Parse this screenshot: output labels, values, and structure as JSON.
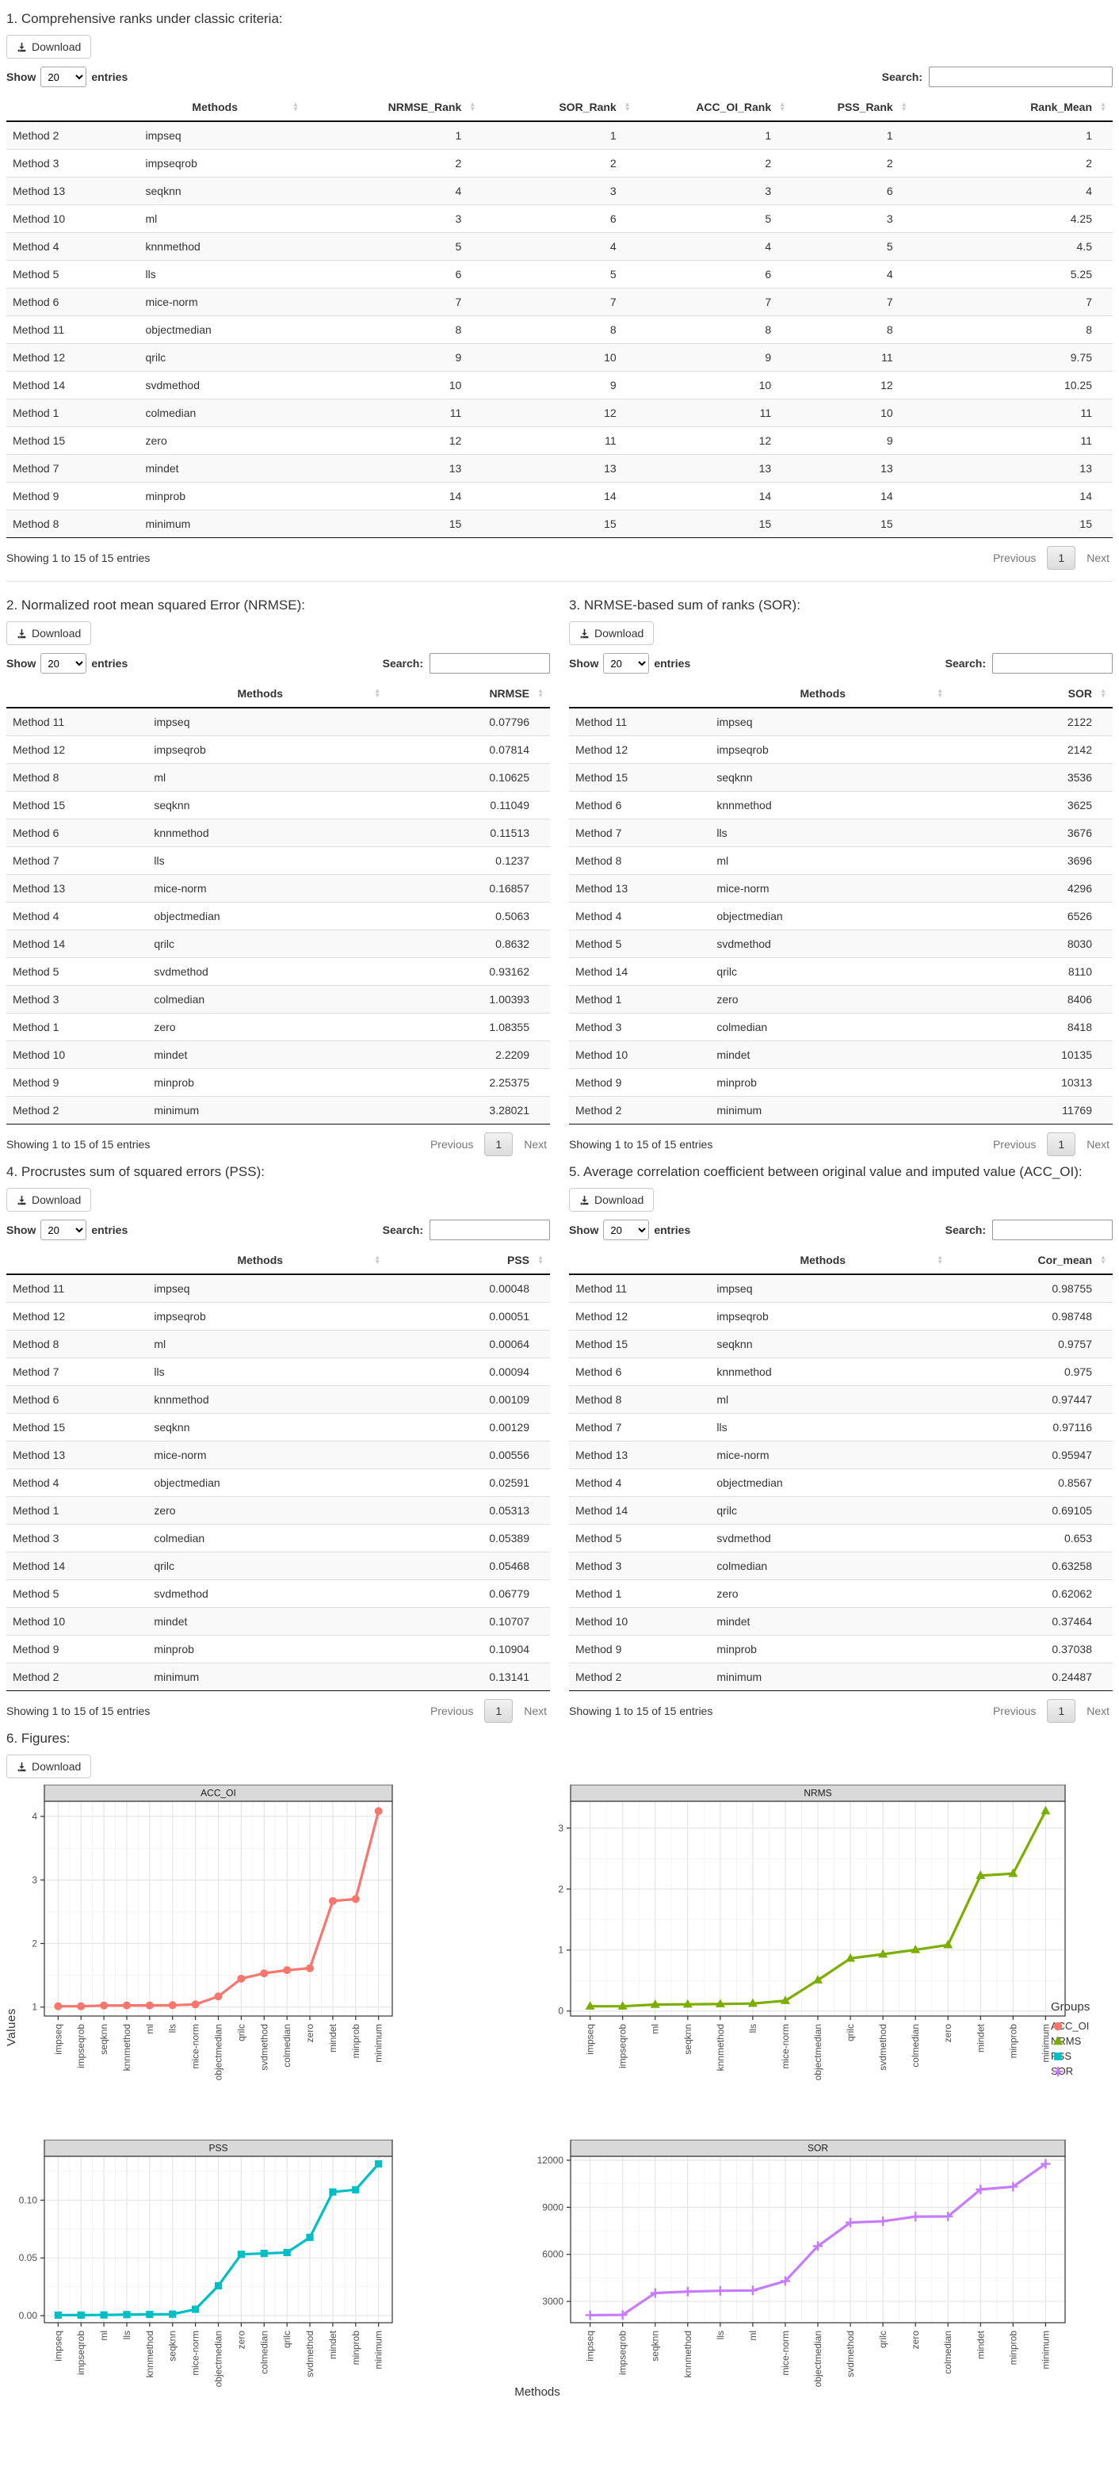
{
  "common": {
    "download_label": "Download",
    "show_label": "Show",
    "entries_label": "entries",
    "show_value": "20",
    "search_label": "Search:",
    "info_text": "Showing 1 to 15 of 15 entries",
    "prev_label": "Previous",
    "page_number": "1",
    "next_label": "Next"
  },
  "sections": {
    "s1": {
      "title": "1. Comprehensive ranks under classic criteria:"
    },
    "s2": {
      "title": "2. Normalized root mean squared Error (NRMSE):"
    },
    "s3": {
      "title": "3. NRMSE-based sum of ranks (SOR):"
    },
    "s4": {
      "title": "4. Procrustes sum of squared errors (PSS):"
    },
    "s5": {
      "title": "5. Average correlation coefficient between original value and imputed value (ACC_OI):"
    },
    "s6": {
      "title": "6. Figures:"
    }
  },
  "tables": {
    "t1": {
      "headers": [
        "",
        "Methods",
        "NRMSE_Rank",
        "SOR_Rank",
        "ACC_OI_Rank",
        "PSS_Rank",
        "Rank_Mean"
      ],
      "col_widths": [
        "12%",
        "15%",
        "16%",
        "14%",
        "14%",
        "11%",
        "18%"
      ],
      "rows": [
        [
          "Method 2",
          "impseq",
          "1",
          "1",
          "1",
          "1",
          "1"
        ],
        [
          "Method 3",
          "impseqrob",
          "2",
          "2",
          "2",
          "2",
          "2"
        ],
        [
          "Method 13",
          "seqknn",
          "4",
          "3",
          "3",
          "6",
          "4"
        ],
        [
          "Method 10",
          "ml",
          "3",
          "6",
          "5",
          "3",
          "4.25"
        ],
        [
          "Method 4",
          "knnmethod",
          "5",
          "4",
          "4",
          "5",
          "4.5"
        ],
        [
          "Method 5",
          "lls",
          "6",
          "5",
          "6",
          "4",
          "5.25"
        ],
        [
          "Method 6",
          "mice-norm",
          "7",
          "7",
          "7",
          "7",
          "7"
        ],
        [
          "Method 11",
          "objectmedian",
          "8",
          "8",
          "8",
          "8",
          "8"
        ],
        [
          "Method 12",
          "qrilc",
          "9",
          "10",
          "9",
          "11",
          "9.75"
        ],
        [
          "Method 14",
          "svdmethod",
          "10",
          "9",
          "10",
          "12",
          "10.25"
        ],
        [
          "Method 1",
          "colmedian",
          "11",
          "12",
          "11",
          "10",
          "11"
        ],
        [
          "Method 15",
          "zero",
          "12",
          "11",
          "12",
          "9",
          "11"
        ],
        [
          "Method 7",
          "mindet",
          "13",
          "13",
          "13",
          "13",
          "13"
        ],
        [
          "Method 9",
          "minprob",
          "14",
          "14",
          "14",
          "14",
          "14"
        ],
        [
          "Method 8",
          "minimum",
          "15",
          "15",
          "15",
          "15",
          "15"
        ]
      ]
    },
    "t2": {
      "headers": [
        "",
        "Methods",
        "NRMSE"
      ],
      "col_widths": [
        "26%",
        "44%",
        "30%"
      ],
      "rows": [
        [
          "Method 11",
          "impseq",
          "0.07796"
        ],
        [
          "Method 12",
          "impseqrob",
          "0.07814"
        ],
        [
          "Method 8",
          "ml",
          "0.10625"
        ],
        [
          "Method 15",
          "seqknn",
          "0.11049"
        ],
        [
          "Method 6",
          "knnmethod",
          "0.11513"
        ],
        [
          "Method 7",
          "lls",
          "0.1237"
        ],
        [
          "Method 13",
          "mice-norm",
          "0.16857"
        ],
        [
          "Method 4",
          "objectmedian",
          "0.5063"
        ],
        [
          "Method 14",
          "qrilc",
          "0.8632"
        ],
        [
          "Method 5",
          "svdmethod",
          "0.93162"
        ],
        [
          "Method 3",
          "colmedian",
          "1.00393"
        ],
        [
          "Method 1",
          "zero",
          "1.08355"
        ],
        [
          "Method 10",
          "mindet",
          "2.2209"
        ],
        [
          "Method 9",
          "minprob",
          "2.25375"
        ],
        [
          "Method 2",
          "minimum",
          "3.28021"
        ]
      ]
    },
    "t3": {
      "headers": [
        "",
        "Methods",
        "SOR"
      ],
      "col_widths": [
        "26%",
        "44%",
        "30%"
      ],
      "rows": [
        [
          "Method 11",
          "impseq",
          "2122"
        ],
        [
          "Method 12",
          "impseqrob",
          "2142"
        ],
        [
          "Method 15",
          "seqknn",
          "3536"
        ],
        [
          "Method 6",
          "knnmethod",
          "3625"
        ],
        [
          "Method 7",
          "lls",
          "3676"
        ],
        [
          "Method 8",
          "ml",
          "3696"
        ],
        [
          "Method 13",
          "mice-norm",
          "4296"
        ],
        [
          "Method 4",
          "objectmedian",
          "6526"
        ],
        [
          "Method 5",
          "svdmethod",
          "8030"
        ],
        [
          "Method 14",
          "qrilc",
          "8110"
        ],
        [
          "Method 1",
          "zero",
          "8406"
        ],
        [
          "Method 3",
          "colmedian",
          "8418"
        ],
        [
          "Method 10",
          "mindet",
          "10135"
        ],
        [
          "Method 9",
          "minprob",
          "10313"
        ],
        [
          "Method 2",
          "minimum",
          "11769"
        ]
      ]
    },
    "t4": {
      "headers": [
        "",
        "Methods",
        "PSS"
      ],
      "col_widths": [
        "26%",
        "44%",
        "30%"
      ],
      "rows": [
        [
          "Method 11",
          "impseq",
          "0.00048"
        ],
        [
          "Method 12",
          "impseqrob",
          "0.00051"
        ],
        [
          "Method 8",
          "ml",
          "0.00064"
        ],
        [
          "Method 7",
          "lls",
          "0.00094"
        ],
        [
          "Method 6",
          "knnmethod",
          "0.00109"
        ],
        [
          "Method 15",
          "seqknn",
          "0.00129"
        ],
        [
          "Method 13",
          "mice-norm",
          "0.00556"
        ],
        [
          "Method 4",
          "objectmedian",
          "0.02591"
        ],
        [
          "Method 1",
          "zero",
          "0.05313"
        ],
        [
          "Method 3",
          "colmedian",
          "0.05389"
        ],
        [
          "Method 14",
          "qrilc",
          "0.05468"
        ],
        [
          "Method 5",
          "svdmethod",
          "0.06779"
        ],
        [
          "Method 10",
          "mindet",
          "0.10707"
        ],
        [
          "Method 9",
          "minprob",
          "0.10904"
        ],
        [
          "Method 2",
          "minimum",
          "0.13141"
        ]
      ]
    },
    "t5": {
      "headers": [
        "",
        "Methods",
        "Cor_mean"
      ],
      "col_widths": [
        "26%",
        "44%",
        "30%"
      ],
      "rows": [
        [
          "Method 11",
          "impseq",
          "0.98755"
        ],
        [
          "Method 12",
          "impseqrob",
          "0.98748"
        ],
        [
          "Method 15",
          "seqknn",
          "0.9757"
        ],
        [
          "Method 6",
          "knnmethod",
          "0.975"
        ],
        [
          "Method 8",
          "ml",
          "0.97447"
        ],
        [
          "Method 7",
          "lls",
          "0.97116"
        ],
        [
          "Method 13",
          "mice-norm",
          "0.95947"
        ],
        [
          "Method 4",
          "objectmedian",
          "0.8567"
        ],
        [
          "Method 14",
          "qrilc",
          "0.69105"
        ],
        [
          "Method 5",
          "svdmethod",
          "0.653"
        ],
        [
          "Method 3",
          "colmedian",
          "0.63258"
        ],
        [
          "Method 1",
          "zero",
          "0.62062"
        ],
        [
          "Method 10",
          "mindet",
          "0.37464"
        ],
        [
          "Method 9",
          "minprob",
          "0.37038"
        ],
        [
          "Method 2",
          "minimum",
          "0.24487"
        ]
      ]
    }
  },
  "figures": {
    "values_label": "Values",
    "methods_label": "Methods",
    "legend_title": "Groups"
  },
  "chart_data": [
    {
      "type": "line",
      "title": "ACC_OI",
      "color": "#F8766D",
      "marker": "circle",
      "categories": [
        "impseq",
        "impseqrob",
        "seqknn",
        "knnmethod",
        "ml",
        "lls",
        "mice-norm",
        "objectmedian",
        "qrilc",
        "svdmethod",
        "colmedian",
        "zero",
        "mindet",
        "minprob",
        "minimum"
      ],
      "values": [
        1.0126,
        1.0127,
        1.0249,
        1.0256,
        1.0262,
        1.0297,
        1.0422,
        1.1673,
        1.4471,
        1.5314,
        1.5808,
        1.6113,
        2.6692,
        2.6999,
        4.0838
      ],
      "yticks": [
        1,
        2,
        3,
        4
      ],
      "yticklabels": [
        "1",
        "2",
        "3",
        "4"
      ],
      "ylim": [
        0.859,
        4.238
      ],
      "xlabel": "Methods",
      "ylabel": "Values",
      "grid": true,
      "legend_position": "right"
    },
    {
      "type": "line",
      "title": "NRMS",
      "color": "#7CAE00",
      "marker": "triangle",
      "categories": [
        "impseq",
        "impseqrob",
        "ml",
        "seqknn",
        "knnmethod",
        "lls",
        "mice-norm",
        "objectmedian",
        "qrilc",
        "svdmethod",
        "colmedian",
        "zero",
        "mindet",
        "minprob",
        "minimum"
      ],
      "values": [
        0.07796,
        0.07814,
        0.10625,
        0.11049,
        0.11513,
        0.1237,
        0.16857,
        0.5063,
        0.8632,
        0.93162,
        1.00393,
        1.08355,
        2.2209,
        2.25375,
        3.28021
      ],
      "yticks": [
        0,
        1,
        2,
        3
      ],
      "yticklabels": [
        "0",
        "1",
        "2",
        "3"
      ],
      "ylim": [
        -0.082,
        3.44
      ],
      "xlabel": "Methods",
      "ylabel": "Values",
      "grid": true,
      "legend_position": "right"
    },
    {
      "type": "line",
      "title": "PSS",
      "color": "#00BFC4",
      "marker": "square",
      "categories": [
        "impseq",
        "impseqrob",
        "ml",
        "lls",
        "knnmethod",
        "seqknn",
        "mice-norm",
        "objectmedian",
        "zero",
        "colmedian",
        "qrilc",
        "svdmethod",
        "mindet",
        "minprob",
        "minimum"
      ],
      "values": [
        0.00048,
        0.00051,
        0.00064,
        0.00094,
        0.00109,
        0.00129,
        0.00556,
        0.02591,
        0.05313,
        0.05389,
        0.05468,
        0.06779,
        0.10707,
        0.10904,
        0.13141
      ],
      "yticks": [
        0,
        0.05,
        0.1
      ],
      "yticklabels": [
        "0.00",
        "0.05",
        "0.10"
      ],
      "ylim": [
        -0.0061,
        0.138
      ],
      "xlabel": "Methods",
      "ylabel": "Values",
      "grid": true,
      "legend_position": "right"
    },
    {
      "type": "line",
      "title": "SOR",
      "color": "#C77CFF",
      "marker": "plus",
      "categories": [
        "impseq",
        "impseqrob",
        "seqknn",
        "knnmethod",
        "lls",
        "ml",
        "mice-norm",
        "objectmedian",
        "svdmethod",
        "qrilc",
        "zero",
        "colmedian",
        "mindet",
        "minprob",
        "minimum"
      ],
      "values": [
        2122,
        2142,
        3536,
        3625,
        3676,
        3696,
        4296,
        6526,
        8030,
        8110,
        8406,
        8418,
        10135,
        10313,
        11769
      ],
      "yticks": [
        3000,
        6000,
        9000,
        12000
      ],
      "yticklabels": [
        "3000",
        "6000",
        "9000",
        "12000"
      ],
      "ylim": [
        1640,
        12251
      ],
      "xlabel": "Methods",
      "ylabel": "Values",
      "grid": true,
      "legend_position": "right"
    }
  ]
}
